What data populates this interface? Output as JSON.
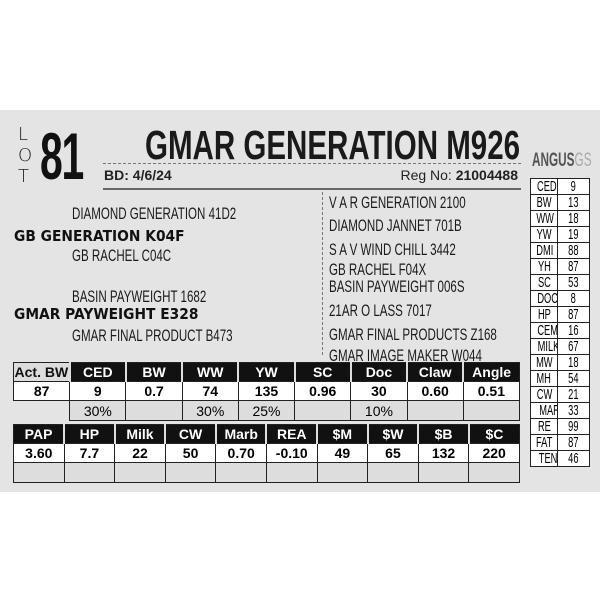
{
  "lot": {
    "letters": [
      "L",
      "O",
      "T"
    ],
    "number": "81"
  },
  "animal": {
    "name": "GMAR GENERATION M926",
    "bd_label": "BD:",
    "bd": "4/6/24",
    "reg_label": "Reg No:",
    "reg": "21004488"
  },
  "pedigree": {
    "sire_sire": "DIAMOND GENERATION 41D2",
    "sire": "GB GENERATION K04F",
    "sire_dam": "GB RACHEL C04C",
    "dam_sire": "BASIN PAYWEIGHT 1682",
    "dam": "GMAR PAYWEIGHT E328",
    "dam_dam": "GMAR FINAL PRODUCT B473",
    "extended": [
      "V A R GENERATION 2100",
      "DIAMOND JANNET 701B",
      "S A V WIND CHILL 3442",
      "GB RACHEL F04X",
      "BASIN PAYWEIGHT 006S",
      "21AR O LASS 7017",
      "GMAR FINAL PRODUCTS Z168",
      "GMAR IMAGE MAKER W044"
    ]
  },
  "logo": {
    "text": "ANGUS",
    "suffix": "GS"
  },
  "percentile_ranks": [
    {
      "trait": "CED",
      "value": "9"
    },
    {
      "trait": "BW",
      "value": "13"
    },
    {
      "trait": "WW",
      "value": "18"
    },
    {
      "trait": "YW",
      "value": "19"
    },
    {
      "trait": "DMI",
      "value": "88"
    },
    {
      "trait": "YH",
      "value": "87"
    },
    {
      "trait": "SC",
      "value": "53"
    },
    {
      "trait": "DOC",
      "value": "8"
    },
    {
      "trait": "HP",
      "value": "87"
    },
    {
      "trait": "CEM",
      "value": "16"
    },
    {
      "trait": "MILK",
      "value": "67"
    },
    {
      "trait": "MW",
      "value": "18"
    },
    {
      "trait": "MH",
      "value": "54"
    },
    {
      "trait": "CW",
      "value": "21"
    },
    {
      "trait": "MARB",
      "value": "33"
    },
    {
      "trait": "RE",
      "value": "99"
    },
    {
      "trait": "FAT",
      "value": "87"
    },
    {
      "trait": "TEND",
      "value": "46"
    }
  ],
  "epd_table_1": {
    "headers": [
      "Act. BW",
      "CED",
      "BW",
      "WW",
      "YW",
      "SC",
      "Doc",
      "Claw",
      "Angle"
    ],
    "values": [
      "87",
      "9",
      "0.7",
      "74",
      "135",
      "0.96",
      "30",
      "0.60",
      "0.51"
    ],
    "percents": [
      "",
      "30%",
      "",
      "30%",
      "25%",
      "",
      "10%",
      "",
      ""
    ]
  },
  "epd_table_2": {
    "headers": [
      "PAP",
      "HP",
      "Milk",
      "CW",
      "Marb",
      "REA",
      "$M",
      "$W",
      "$B",
      "$C"
    ],
    "values": [
      "3.60",
      "7.7",
      "22",
      "50",
      "0.70",
      "-0.10",
      "49",
      "65",
      "132",
      "220"
    ],
    "percents": [
      "",
      "",
      "",
      "",
      "",
      "",
      "",
      "",
      "",
      ""
    ]
  }
}
